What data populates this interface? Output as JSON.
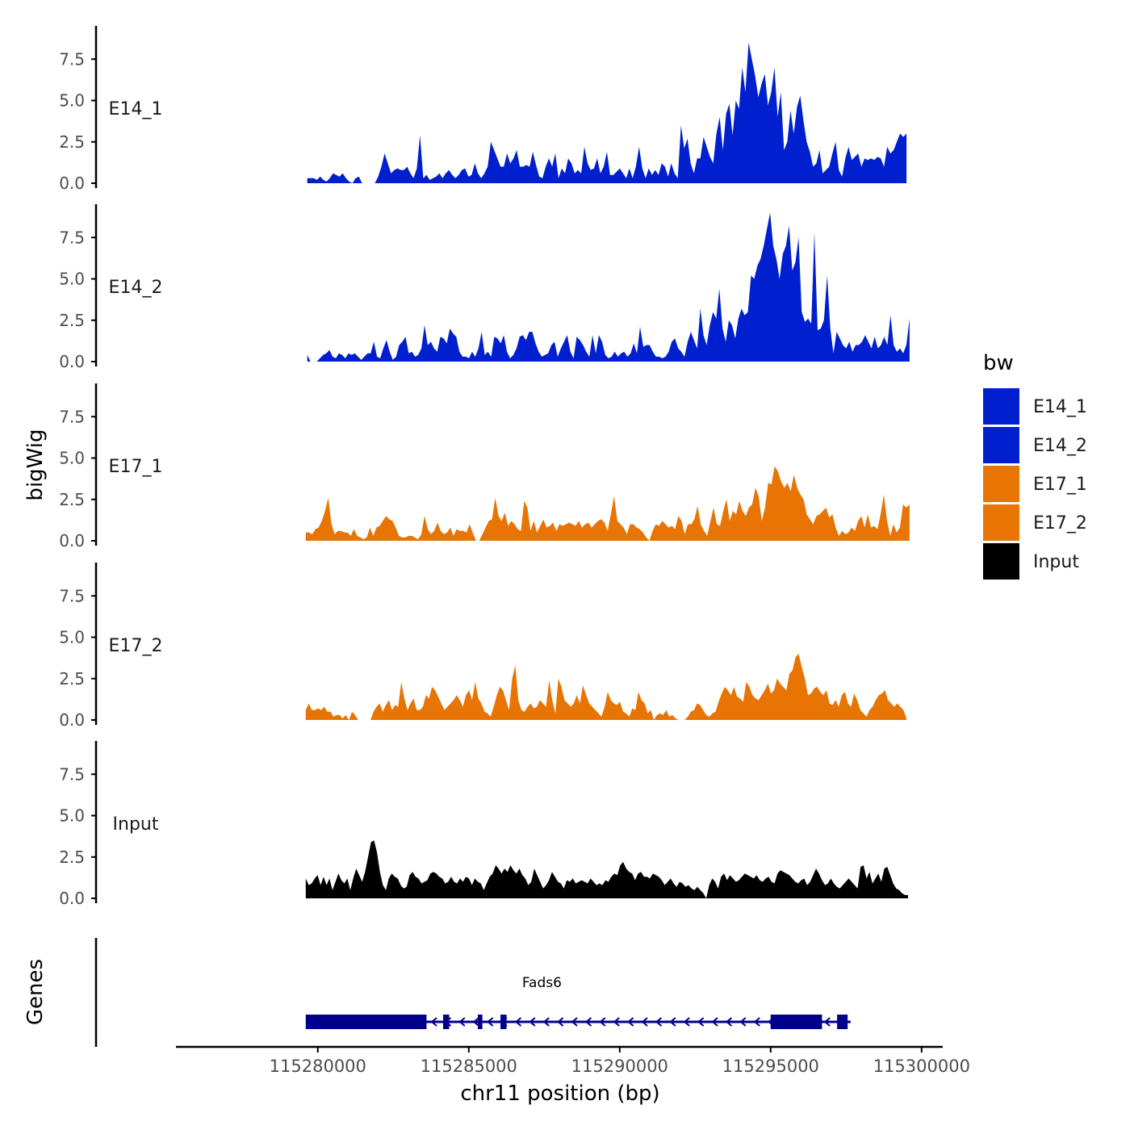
{
  "chart_data": {
    "type": "area",
    "title": "",
    "ylabel": "bigWig",
    "xlabel": "chr11 position (bp)",
    "genes_label": "Genes",
    "ylim": [
      0,
      9.5
    ],
    "yticks": [
      0.0,
      2.5,
      5.0,
      7.5
    ],
    "ytick_labels": [
      "0.0",
      "2.5",
      "5.0",
      "7.5"
    ],
    "xlim": [
      115275300,
      115300700
    ],
    "xticks": [
      115280000,
      115285000,
      115290000,
      115295000,
      115300000
    ],
    "xtick_labels": [
      "115280000",
      "115285000",
      "115290000",
      "115295000",
      "115300000"
    ],
    "legend": {
      "title": "bw",
      "position": "right",
      "items": [
        {
          "label": "E14_1",
          "color": "#0020D0"
        },
        {
          "label": "E14_2",
          "color": "#0020D0"
        },
        {
          "label": "E17_1",
          "color": "#E87404"
        },
        {
          "label": "E17_2",
          "color": "#E87404"
        },
        {
          "label": "Input",
          "color": "#000000"
        }
      ]
    },
    "series": [
      {
        "name": "E14_1",
        "color": "#0020D0",
        "x_start": 115279650,
        "x_end": 115299500,
        "values": [
          0.3,
          0.3,
          0.3,
          0.2,
          0.4,
          0.2,
          0.1,
          0.3,
          0.6,
          0.5,
          0.4,
          0.6,
          0.3,
          0.1,
          0.0,
          0.3,
          0.4,
          0.0,
          0.0,
          0.0,
          0.0,
          0.0,
          0.4,
          1.0,
          1.8,
          1.2,
          0.6,
          0.8,
          0.9,
          0.8,
          0.8,
          1.0,
          0.6,
          0.3,
          0.9,
          2.9,
          0.3,
          0.5,
          0.2,
          0.3,
          0.4,
          0.6,
          0.3,
          0.6,
          0.8,
          0.5,
          0.3,
          0.5,
          0.8,
          0.9,
          0.4,
          0.5,
          1.2,
          0.6,
          0.3,
          0.6,
          1.0,
          2.5,
          2.0,
          1.5,
          1.0,
          1.0,
          1.8,
          1.2,
          1.5,
          2.0,
          1.0,
          1.0,
          1.1,
          1.0,
          1.9,
          1.1,
          0.4,
          0.3,
          1.0,
          1.5,
          1.0,
          1.8,
          0.3,
          0.9,
          0.6,
          1.5,
          1.2,
          0.6,
          0.8,
          0.6,
          2.2,
          1.2,
          0.8,
          0.9,
          1.5,
          0.6,
          1.0,
          1.9,
          0.5,
          0.5,
          0.7,
          0.9,
          0.6,
          0.3,
          0.9,
          0.3,
          1.0,
          2.2,
          0.9,
          0.3,
          0.9,
          0.5,
          0.8,
          0.5,
          1.2,
          1.0,
          0.4,
          1.2,
          0.6,
          0.3,
          3.5,
          2.1,
          2.7,
          1.2,
          0.6,
          1.5,
          1.5,
          2.8,
          2.2,
          1.6,
          1.2,
          3.0,
          4.0,
          2.0,
          4.2,
          4.8,
          2.9,
          5.0,
          4.5,
          7.0,
          5.5,
          8.5,
          7.5,
          6.5,
          5.2,
          6.0,
          6.6,
          4.7,
          5.5,
          7.0,
          4.0,
          5.5,
          2.0,
          2.5,
          4.4,
          3.0,
          4.6,
          5.3,
          3.8,
          2.5,
          1.9,
          1.0,
          1.2,
          2.0,
          0.6,
          0.8,
          1.0,
          1.8,
          2.5,
          0.8,
          0.4,
          1.5,
          2.2,
          1.4,
          1.6,
          1.8,
          1.0,
          1.5,
          1.4,
          1.5,
          1.4,
          1.6,
          1.5,
          1.0,
          2.2,
          1.8,
          2.0,
          2.5,
          3.0,
          2.8,
          3.0
        ]
      },
      {
        "name": "E14_2",
        "color": "#0020D0",
        "x_start": 115279650,
        "x_end": 115299600,
        "values": [
          0.4,
          0.0,
          0.0,
          0.0,
          0.2,
          0.4,
          0.5,
          0.7,
          0.3,
          0.2,
          0.5,
          0.4,
          0.2,
          0.5,
          0.4,
          0.5,
          0.3,
          0.1,
          0.3,
          0.5,
          0.5,
          1.2,
          0.3,
          0.2,
          0.8,
          1.3,
          0.6,
          0.1,
          0.3,
          1.0,
          1.2,
          1.5,
          0.5,
          0.6,
          0.3,
          0.4,
          0.8,
          2.2,
          1.0,
          1.2,
          0.8,
          0.6,
          1.5,
          1.4,
          1.1,
          2.0,
          1.7,
          1.5,
          0.6,
          0.3,
          0.3,
          0.2,
          0.6,
          0.3,
          0.8,
          1.8,
          0.4,
          0.6,
          0.3,
          1.5,
          1.4,
          1.1,
          1.6,
          0.6,
          0.2,
          0.4,
          0.8,
          1.5,
          1.6,
          1.3,
          1.8,
          1.8,
          1.1,
          0.6,
          0.3,
          0.4,
          0.5,
          1.0,
          1.2,
          0.3,
          0.8,
          1.2,
          1.6,
          0.6,
          0.2,
          1.5,
          1.3,
          1.0,
          0.6,
          0.3,
          1.6,
          0.5,
          1.6,
          1.2,
          0.4,
          0.2,
          0.3,
          0.6,
          0.3,
          0.5,
          0.6,
          0.3,
          0.5,
          1.1,
          0.5,
          2.1,
          0.9,
          1.0,
          1.0,
          0.6,
          0.3,
          0.3,
          0.2,
          0.3,
          0.6,
          1.2,
          1.4,
          0.8,
          0.6,
          0.3,
          1.2,
          1.8,
          1.3,
          0.8,
          3.2,
          1.6,
          1.0,
          2.2,
          3.0,
          2.6,
          4.4,
          2.0,
          1.2,
          2.5,
          2.2,
          1.4,
          2.6,
          3.2,
          2.8,
          3.0,
          5.2,
          5.0,
          5.8,
          6.2,
          7.0,
          8.0,
          9.0,
          7.0,
          6.2,
          5.0,
          6.5,
          7.0,
          8.2,
          5.5,
          6.0,
          7.5,
          3.0,
          2.4,
          2.6,
          2.3,
          7.8,
          1.9,
          2.0,
          2.5,
          5.2,
          2.0,
          0.5,
          1.8,
          1.4,
          1.0,
          0.8,
          1.2,
          0.6,
          1.0,
          1.0,
          1.2,
          1.6,
          1.2,
          0.8,
          1.5,
          0.8,
          1.0,
          1.5,
          1.0,
          2.8,
          1.0,
          0.6,
          0.8,
          0.5,
          1.0,
          2.6
        ]
      },
      {
        "name": "E17_1",
        "color": "#E87404",
        "x_start": 115279600,
        "x_end": 115299600,
        "values": [
          0.5,
          0.5,
          0.4,
          0.7,
          0.8,
          1.2,
          1.8,
          2.6,
          1.0,
          0.4,
          0.6,
          0.6,
          0.5,
          0.5,
          0.3,
          0.7,
          0.3,
          0.2,
          0.1,
          0.2,
          0.8,
          0.3,
          0.8,
          0.9,
          1.2,
          1.5,
          1.3,
          1.2,
          0.8,
          0.3,
          0.2,
          0.2,
          0.3,
          0.3,
          0.2,
          0.1,
          0.4,
          1.5,
          0.7,
          0.4,
          0.6,
          1.1,
          0.6,
          0.4,
          0.5,
          0.8,
          0.3,
          0.7,
          0.6,
          0.6,
          0.5,
          1.0,
          0.5,
          0.0,
          0.0,
          0.4,
          0.8,
          1.2,
          1.3,
          2.6,
          1.5,
          1.2,
          1.7,
          0.9,
          1.2,
          1.0,
          0.7,
          0.6,
          2.4,
          2.0,
          0.6,
          1.2,
          0.5,
          0.9,
          1.3,
          0.8,
          0.9,
          1.1,
          0.6,
          1.0,
          0.9,
          1.0,
          1.1,
          1.0,
          0.9,
          1.2,
          0.8,
          1.0,
          1.1,
          0.8,
          1.0,
          1.2,
          1.3,
          1.1,
          0.6,
          1.6,
          2.7,
          1.2,
          1.0,
          0.8,
          0.4,
          1.0,
          1.0,
          0.8,
          0.7,
          0.5,
          0.2,
          0.0,
          0.6,
          1.0,
          0.9,
          1.2,
          1.0,
          0.8,
          0.9,
          0.7,
          1.5,
          1.2,
          0.4,
          1.0,
          1.0,
          1.3,
          2.1,
          1.0,
          0.6,
          0.3,
          1.2,
          2.0,
          1.0,
          0.9,
          1.8,
          2.5,
          1.2,
          1.8,
          1.6,
          2.4,
          1.8,
          1.5,
          2.0,
          2.2,
          3.2,
          2.7,
          1.2,
          2.0,
          3.5,
          3.4,
          4.5,
          4.2,
          3.6,
          3.2,
          3.5,
          3.0,
          4.0,
          3.2,
          2.8,
          2.5,
          1.6,
          1.3,
          1.0,
          1.5,
          1.6,
          1.8,
          2.0,
          1.4,
          1.6,
          0.8,
          0.3,
          0.6,
          0.4,
          0.5,
          0.8,
          0.6,
          1.2,
          1.5,
          0.8,
          1.6,
          0.8,
          0.9,
          0.7,
          1.6,
          2.8,
          1.2,
          0.3,
          1.0,
          0.5,
          0.8,
          2.2,
          2.0,
          2.2
        ]
      },
      {
        "name": "E17_2",
        "color": "#E87404",
        "x_start": 115279600,
        "x_end": 115299500,
        "values": [
          0.6,
          1.0,
          0.6,
          0.6,
          0.7,
          0.6,
          0.8,
          0.5,
          0.5,
          0.2,
          0.3,
          0.3,
          0.1,
          0.3,
          0.0,
          0.5,
          0.3,
          0.0,
          0.0,
          0.0,
          0.0,
          0.0,
          0.5,
          0.8,
          1.0,
          0.5,
          0.9,
          1.2,
          0.6,
          0.9,
          0.8,
          2.3,
          1.3,
          0.6,
          1.0,
          1.3,
          0.6,
          0.6,
          0.8,
          1.5,
          1.3,
          2.0,
          1.8,
          1.4,
          1.0,
          0.6,
          0.8,
          1.0,
          1.2,
          1.5,
          1.2,
          0.8,
          1.5,
          1.8,
          1.2,
          2.3,
          1.3,
          1.0,
          0.5,
          0.4,
          0.2,
          0.8,
          1.5,
          2.0,
          1.8,
          1.2,
          0.6,
          2.5,
          3.3,
          1.2,
          0.6,
          0.5,
          0.8,
          1.0,
          0.7,
          0.8,
          1.2,
          1.0,
          0.8,
          2.4,
          1.2,
          0.4,
          2.5,
          2.0,
          1.2,
          1.0,
          0.8,
          1.0,
          1.5,
          1.0,
          2.1,
          1.5,
          1.0,
          0.8,
          0.6,
          0.4,
          0.2,
          0.8,
          1.7,
          1.2,
          1.0,
          0.9,
          1.1,
          0.5,
          0.4,
          0.2,
          0.7,
          0.6,
          1.7,
          1.2,
          1.0,
          0.4,
          0.6,
          0.0,
          0.3,
          0.4,
          0.3,
          0.6,
          0.2,
          0.3,
          0.1,
          0.0,
          0.0,
          0.0,
          0.2,
          0.5,
          0.6,
          1.0,
          0.9,
          0.6,
          0.3,
          0.2,
          0.4,
          0.5,
          1.1,
          1.6,
          2.0,
          1.8,
          1.5,
          2.0,
          1.4,
          1.3,
          1.1,
          2.3,
          2.0,
          1.5,
          1.3,
          1.2,
          1.5,
          1.8,
          2.2,
          1.6,
          1.8,
          2.5,
          2.2,
          2.0,
          1.8,
          2.8,
          3.0,
          3.8,
          4.0,
          3.2,
          2.5,
          1.5,
          1.6,
          1.9,
          2.0,
          1.7,
          1.5,
          1.8,
          1.0,
          0.9,
          1.2,
          0.8,
          1.5,
          1.7,
          1.0,
          0.8,
          1.6,
          1.2,
          0.6,
          0.4,
          0.2,
          0.6,
          0.8,
          1.2,
          1.5,
          1.6,
          1.8,
          1.2,
          1.0,
          0.8,
          1.0,
          0.8,
          0.6,
          0.1
        ]
      },
      {
        "name": "Input",
        "color": "#000000",
        "x_start": 115279600,
        "x_end": 115299550,
        "values": [
          1.2,
          0.8,
          0.9,
          1.2,
          1.4,
          0.8,
          1.3,
          0.8,
          1.2,
          0.5,
          1.0,
          1.5,
          1.1,
          0.9,
          1.2,
          0.5,
          1.2,
          1.8,
          1.4,
          1.0,
          1.6,
          2.5,
          3.4,
          3.5,
          2.8,
          1.6,
          0.8,
          0.5,
          1.2,
          1.5,
          1.3,
          1.2,
          0.8,
          0.6,
          0.7,
          1.4,
          1.6,
          1.3,
          1.2,
          0.9,
          1.0,
          1.1,
          1.5,
          1.6,
          1.5,
          1.3,
          1.2,
          0.9,
          1.0,
          1.3,
          1.0,
          0.9,
          1.2,
          1.0,
          1.3,
          1.2,
          0.8,
          1.2,
          1.0,
          0.9,
          0.5,
          0.9,
          1.3,
          1.5,
          2.0,
          1.8,
          1.5,
          1.8,
          1.6,
          2.0,
          1.7,
          1.5,
          1.8,
          1.4,
          1.2,
          0.8,
          1.0,
          1.8,
          1.4,
          1.0,
          0.6,
          0.8,
          1.1,
          1.6,
          1.3,
          1.0,
          0.9,
          0.6,
          1.1,
          1.0,
          1.2,
          0.9,
          1.0,
          1.1,
          1.0,
          0.9,
          1.2,
          1.0,
          0.8,
          0.9,
          0.8,
          1.1,
          1.0,
          1.3,
          1.5,
          1.4,
          2.0,
          2.2,
          1.8,
          1.6,
          1.5,
          1.1,
          1.5,
          1.6,
          1.3,
          1.3,
          1.2,
          1.5,
          1.4,
          1.3,
          1.1,
          0.8,
          1.0,
          1.2,
          0.9,
          0.7,
          1.0,
          0.9,
          0.7,
          0.8,
          0.6,
          0.5,
          0.7,
          0.5,
          0.3,
          0.0,
          0.8,
          1.2,
          1.0,
          0.6,
          1.3,
          1.5,
          1.1,
          1.4,
          1.2,
          1.0,
          1.1,
          1.3,
          1.5,
          1.4,
          1.3,
          1.2,
          1.4,
          1.1,
          1.0,
          1.2,
          1.3,
          1.0,
          0.9,
          1.5,
          1.7,
          1.6,
          1.5,
          1.4,
          1.2,
          1.0,
          0.9,
          1.1,
          1.2,
          0.8,
          1.0,
          1.4,
          1.8,
          1.5,
          1.1,
          0.8,
          0.9,
          1.2,
          0.9,
          0.7,
          0.6,
          0.8,
          1.0,
          1.2,
          1.0,
          0.8,
          0.6,
          1.9,
          2.0,
          1.2,
          1.6,
          0.9,
          1.2,
          1.5,
          1.0,
          1.8,
          1.9,
          1.4,
          0.9,
          0.6,
          0.5,
          0.3,
          0.2,
          0.2
        ]
      }
    ],
    "genes": [
      {
        "name": "Fads6",
        "color": "#00008B",
        "strand": "-",
        "start": 115279600,
        "end": 115297650,
        "exons": [
          [
            115279600,
            115283600
          ],
          [
            115284150,
            115284350
          ],
          [
            115285300,
            115285450
          ],
          [
            115286050,
            115286250
          ],
          [
            115295000,
            115296700
          ],
          [
            115297200,
            115297550
          ]
        ]
      }
    ]
  }
}
